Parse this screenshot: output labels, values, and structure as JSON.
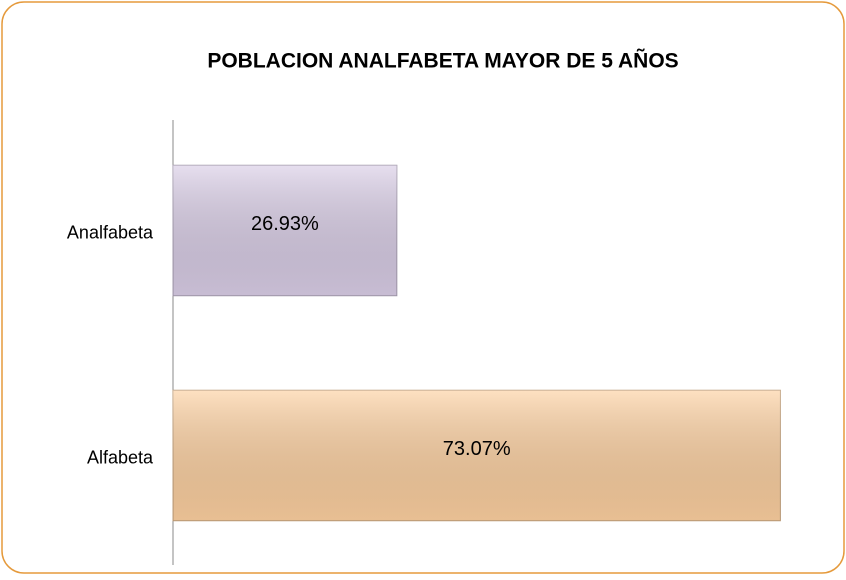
{
  "chart_data": {
    "type": "bar",
    "orientation": "horizontal",
    "title": "POBLACION  ANALFABETA  MAYOR DE 5 AÑOS",
    "categories": [
      "Analfabeta",
      "Alfabeta"
    ],
    "values": [
      26.93,
      73.07
    ],
    "value_labels": [
      "26.93%",
      "73.07%"
    ],
    "colors": [
      "#d9cde6",
      "#fdd0a0"
    ],
    "xlim": [
      0,
      80
    ]
  }
}
